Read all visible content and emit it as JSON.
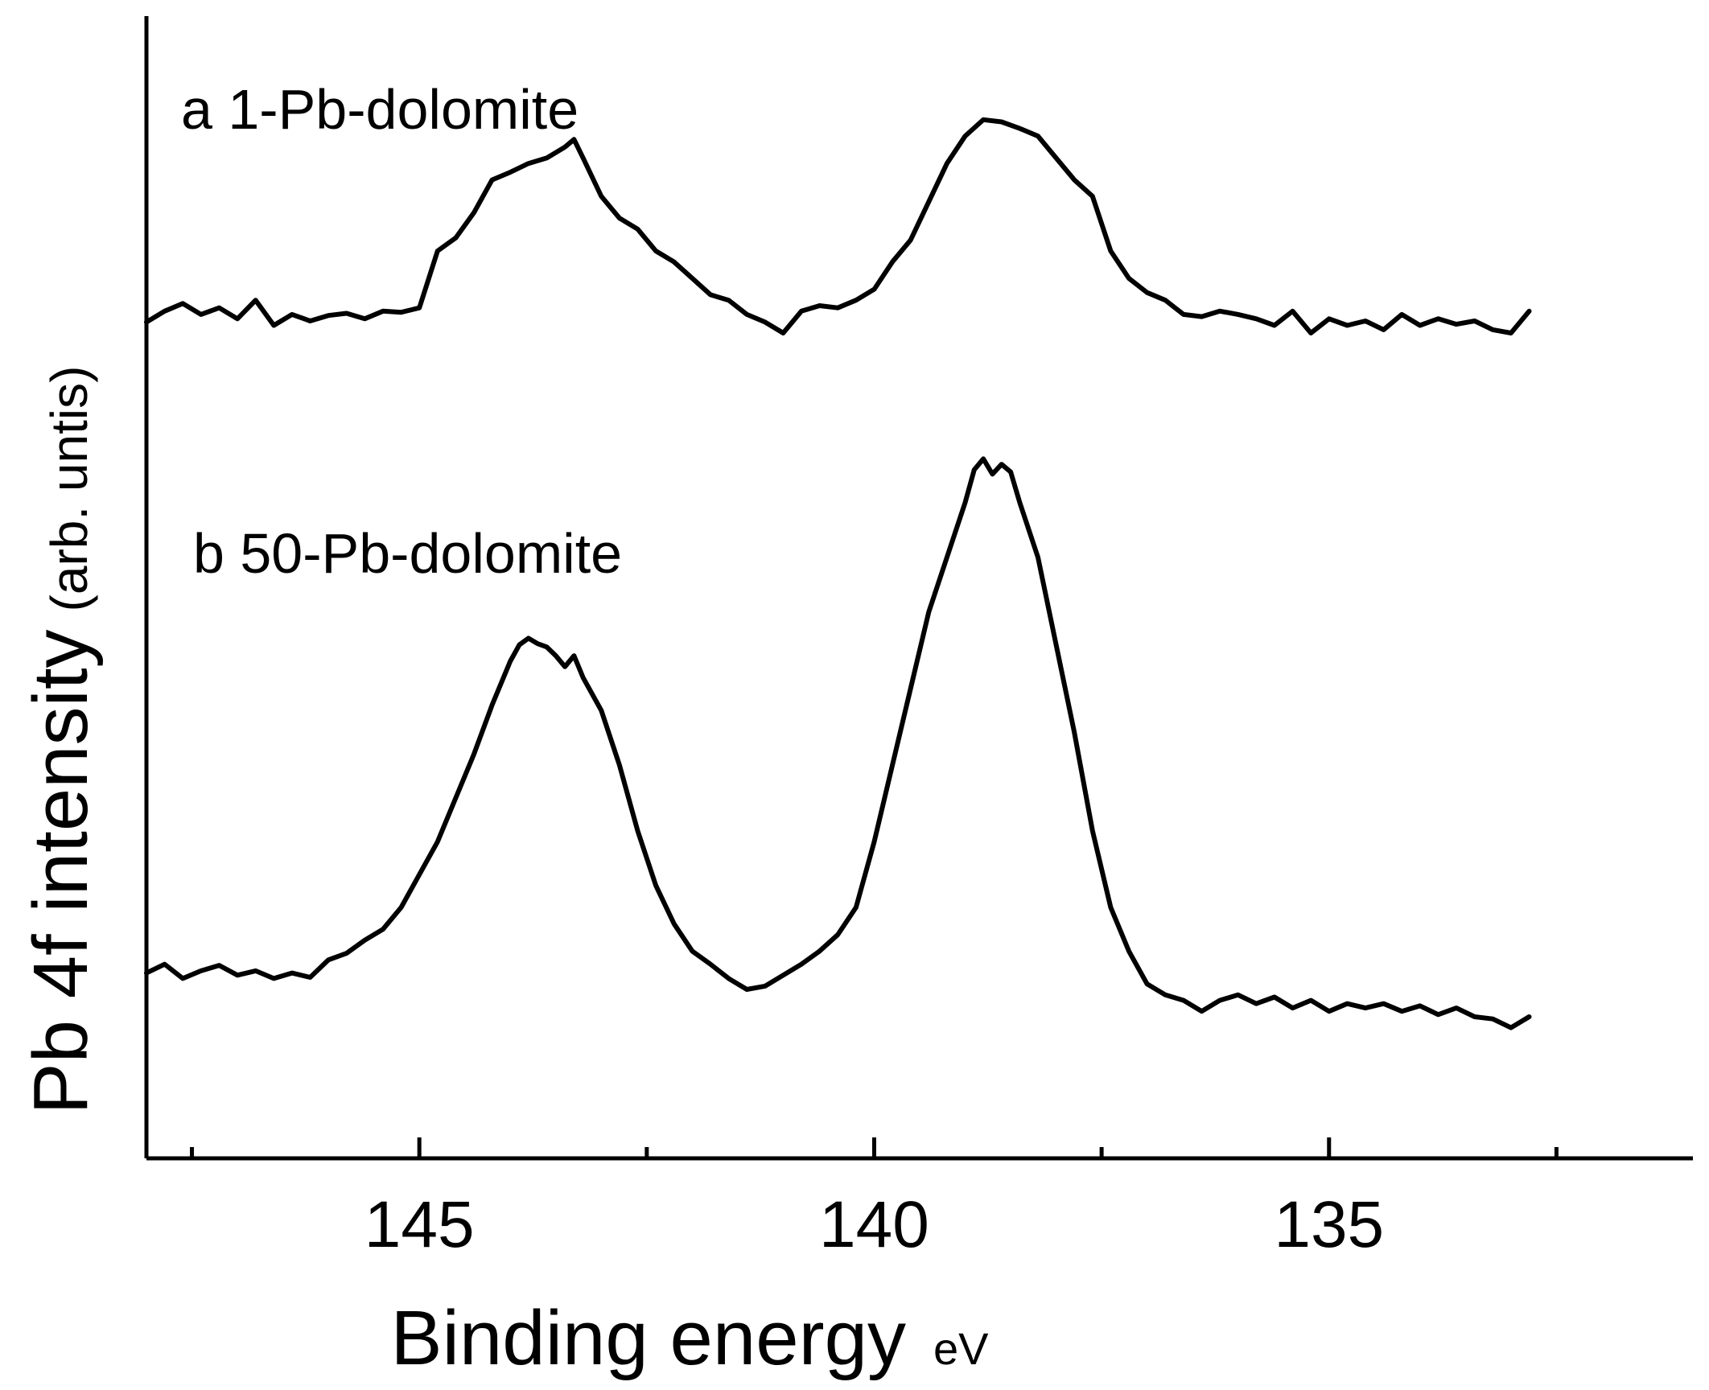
{
  "chart_data": {
    "type": "line",
    "xlabel": "Binding energy",
    "xlabel_unit": "eV",
    "ylabel": "Pb 4f intensity",
    "ylabel_unit": "(arb. untis)",
    "x_reversed": true,
    "xlim": [
      148,
      131
    ],
    "ylim": [
      0,
      1
    ],
    "xticks_major": [
      145,
      140,
      135
    ],
    "xtick_labels": [
      "145",
      "140",
      "135"
    ],
    "xticks_minor": [
      147.5,
      142.5,
      137.5,
      132.5
    ],
    "grid": false,
    "series": [
      {
        "name": "a 1-Pb-dolomite",
        "points": [
          [
            148,
            0.735
          ],
          [
            147.8,
            0.745
          ],
          [
            147.6,
            0.752
          ],
          [
            147.4,
            0.742
          ],
          [
            147.2,
            0.748
          ],
          [
            147.0,
            0.738
          ],
          [
            146.8,
            0.755
          ],
          [
            146.6,
            0.732
          ],
          [
            146.4,
            0.742
          ],
          [
            146.2,
            0.736
          ],
          [
            146.0,
            0.741
          ],
          [
            145.8,
            0.743
          ],
          [
            145.6,
            0.738
          ],
          [
            145.4,
            0.745
          ],
          [
            145.2,
            0.744
          ],
          [
            145.0,
            0.748
          ],
          [
            144.8,
            0.8
          ],
          [
            144.6,
            0.812
          ],
          [
            144.4,
            0.835
          ],
          [
            144.2,
            0.865
          ],
          [
            144.0,
            0.872
          ],
          [
            143.8,
            0.88
          ],
          [
            143.6,
            0.885
          ],
          [
            143.4,
            0.895
          ],
          [
            143.3,
            0.902
          ],
          [
            143.2,
            0.885
          ],
          [
            143.0,
            0.85
          ],
          [
            142.8,
            0.83
          ],
          [
            142.6,
            0.82
          ],
          [
            142.4,
            0.8
          ],
          [
            142.2,
            0.79
          ],
          [
            142.0,
            0.775
          ],
          [
            141.8,
            0.76
          ],
          [
            141.6,
            0.755
          ],
          [
            141.4,
            0.742
          ],
          [
            141.2,
            0.735
          ],
          [
            141.0,
            0.725
          ],
          [
            140.8,
            0.745
          ],
          [
            140.6,
            0.75
          ],
          [
            140.4,
            0.748
          ],
          [
            140.2,
            0.755
          ],
          [
            140.0,
            0.765
          ],
          [
            139.8,
            0.79
          ],
          [
            139.6,
            0.81
          ],
          [
            139.4,
            0.845
          ],
          [
            139.2,
            0.88
          ],
          [
            139.0,
            0.905
          ],
          [
            138.8,
            0.92
          ],
          [
            138.6,
            0.918
          ],
          [
            138.4,
            0.912
          ],
          [
            138.2,
            0.905
          ],
          [
            138.0,
            0.885
          ],
          [
            137.8,
            0.865
          ],
          [
            137.6,
            0.85
          ],
          [
            137.4,
            0.8
          ],
          [
            137.2,
            0.775
          ],
          [
            137.0,
            0.762
          ],
          [
            136.8,
            0.755
          ],
          [
            136.6,
            0.742
          ],
          [
            136.4,
            0.74
          ],
          [
            136.2,
            0.745
          ],
          [
            136.0,
            0.742
          ],
          [
            135.8,
            0.738
          ],
          [
            135.6,
            0.732
          ],
          [
            135.4,
            0.745
          ],
          [
            135.2,
            0.725
          ],
          [
            135.0,
            0.738
          ],
          [
            134.8,
            0.732
          ],
          [
            134.6,
            0.736
          ],
          [
            134.4,
            0.728
          ],
          [
            134.2,
            0.742
          ],
          [
            134.0,
            0.732
          ],
          [
            133.8,
            0.738
          ],
          [
            133.6,
            0.733
          ],
          [
            133.4,
            0.736
          ],
          [
            133.2,
            0.728
          ],
          [
            133.0,
            0.725
          ],
          [
            132.8,
            0.745
          ]
        ]
      },
      {
        "name": "b 50-Pb-dolomite",
        "points": [
          [
            148,
            0.14
          ],
          [
            147.8,
            0.148
          ],
          [
            147.6,
            0.135
          ],
          [
            147.4,
            0.142
          ],
          [
            147.2,
            0.147
          ],
          [
            147.0,
            0.138
          ],
          [
            146.8,
            0.142
          ],
          [
            146.6,
            0.135
          ],
          [
            146.4,
            0.14
          ],
          [
            146.2,
            0.136
          ],
          [
            146.0,
            0.152
          ],
          [
            145.8,
            0.158
          ],
          [
            145.6,
            0.17
          ],
          [
            145.4,
            0.18
          ],
          [
            145.2,
            0.2
          ],
          [
            145.0,
            0.23
          ],
          [
            144.8,
            0.26
          ],
          [
            144.6,
            0.3
          ],
          [
            144.4,
            0.34
          ],
          [
            144.2,
            0.385
          ],
          [
            144.0,
            0.425
          ],
          [
            143.9,
            0.44
          ],
          [
            143.8,
            0.446
          ],
          [
            143.7,
            0.441
          ],
          [
            143.6,
            0.438
          ],
          [
            143.5,
            0.43
          ],
          [
            143.4,
            0.42
          ],
          [
            143.3,
            0.43
          ],
          [
            143.2,
            0.41
          ],
          [
            143.0,
            0.38
          ],
          [
            142.8,
            0.33
          ],
          [
            142.6,
            0.27
          ],
          [
            142.4,
            0.22
          ],
          [
            142.2,
            0.185
          ],
          [
            142.0,
            0.16
          ],
          [
            141.8,
            0.148
          ],
          [
            141.6,
            0.135
          ],
          [
            141.4,
            0.125
          ],
          [
            141.2,
            0.128
          ],
          [
            141.0,
            0.138
          ],
          [
            140.8,
            0.148
          ],
          [
            140.6,
            0.16
          ],
          [
            140.4,
            0.175
          ],
          [
            140.2,
            0.2
          ],
          [
            140.0,
            0.26
          ],
          [
            139.8,
            0.33
          ],
          [
            139.6,
            0.4
          ],
          [
            139.4,
            0.47
          ],
          [
            139.2,
            0.52
          ],
          [
            139.0,
            0.57
          ],
          [
            138.9,
            0.6
          ],
          [
            138.8,
            0.61
          ],
          [
            138.7,
            0.596
          ],
          [
            138.6,
            0.605
          ],
          [
            138.5,
            0.598
          ],
          [
            138.4,
            0.57
          ],
          [
            138.2,
            0.52
          ],
          [
            138.0,
            0.44
          ],
          [
            137.8,
            0.36
          ],
          [
            137.6,
            0.27
          ],
          [
            137.4,
            0.2
          ],
          [
            137.2,
            0.16
          ],
          [
            137.0,
            0.13
          ],
          [
            136.8,
            0.12
          ],
          [
            136.6,
            0.115
          ],
          [
            136.4,
            0.105
          ],
          [
            136.2,
            0.115
          ],
          [
            136.0,
            0.12
          ],
          [
            135.8,
            0.112
          ],
          [
            135.6,
            0.118
          ],
          [
            135.4,
            0.108
          ],
          [
            135.2,
            0.115
          ],
          [
            135.0,
            0.105
          ],
          [
            134.8,
            0.112
          ],
          [
            134.6,
            0.108
          ],
          [
            134.4,
            0.112
          ],
          [
            134.2,
            0.105
          ],
          [
            134.0,
            0.11
          ],
          [
            133.8,
            0.102
          ],
          [
            133.6,
            0.108
          ],
          [
            133.4,
            0.1
          ],
          [
            133.2,
            0.098
          ],
          [
            133.0,
            0.09
          ],
          [
            132.8,
            0.1
          ]
        ]
      }
    ]
  }
}
